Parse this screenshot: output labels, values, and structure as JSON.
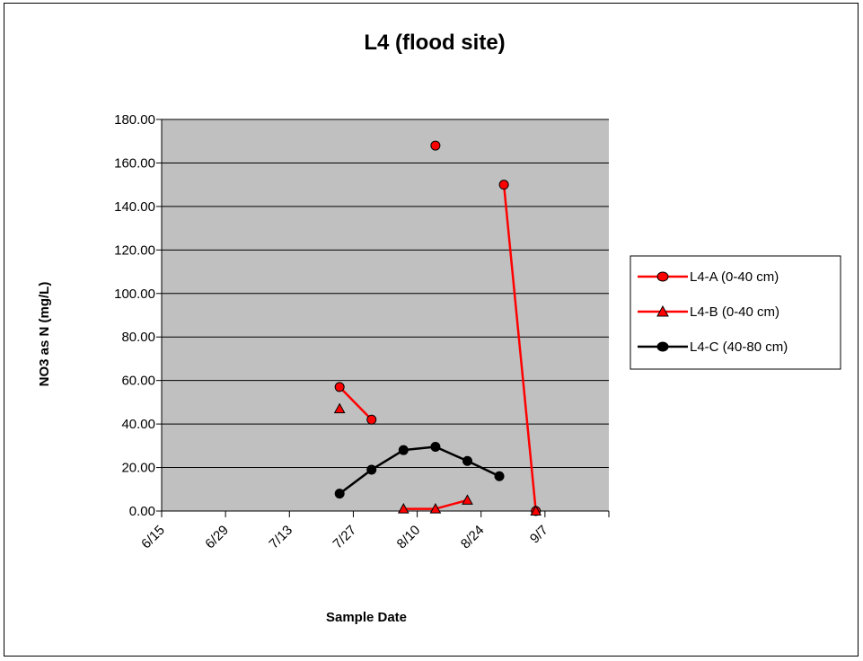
{
  "chart_data": {
    "type": "line",
    "title": "L4 (flood site)",
    "xlabel": "Sample Date",
    "ylabel": "NO3 as N (mg/L)",
    "x_tick_labels": [
      "6/15",
      "6/29",
      "7/13",
      "7/27",
      "8/10",
      "8/24",
      "9/7"
    ],
    "y_tick_labels": [
      "0.00",
      "20.00",
      "40.00",
      "60.00",
      "80.00",
      "100.00",
      "120.00",
      "140.00",
      "160.00",
      "180.00"
    ],
    "xlim": [
      "2000-06-15",
      "2000-09-21"
    ],
    "ylim": [
      0,
      180
    ],
    "grid": "horizontal",
    "legend_position": "right",
    "plot_background": "#c0c0c0",
    "series": [
      {
        "name": "L4-A (0-40 cm)",
        "color": "#ff0000",
        "marker": "circle",
        "marker_fill": "#ff0000",
        "points": [
          {
            "x": "2000-07-24",
            "y": 57
          },
          {
            "x": "2000-07-31",
            "y": 42
          },
          {
            "x": null,
            "y": null
          },
          {
            "x": "2000-08-14",
            "y": 168
          },
          {
            "x": null,
            "y": null
          },
          {
            "x": "2000-08-29",
            "y": 150
          },
          {
            "x": "2000-09-05",
            "y": 0
          }
        ]
      },
      {
        "name": "L4-B (0-40 cm)",
        "color": "#ff0000",
        "marker": "triangle",
        "marker_fill": "#ff0000",
        "points": [
          {
            "x": "2000-07-24",
            "y": 47
          },
          {
            "x": null,
            "y": null
          },
          {
            "x": "2000-08-07",
            "y": 1
          },
          {
            "x": "2000-08-14",
            "y": 1
          },
          {
            "x": "2000-08-21",
            "y": 5
          },
          {
            "x": null,
            "y": null
          },
          {
            "x": "2000-09-05",
            "y": 0
          }
        ]
      },
      {
        "name": "L4-C (40-80 cm)",
        "color": "#000000",
        "marker": "circle",
        "marker_fill": "#000000",
        "points": [
          {
            "x": "2000-07-24",
            "y": 8
          },
          {
            "x": "2000-07-31",
            "y": 19
          },
          {
            "x": "2000-08-07",
            "y": 28
          },
          {
            "x": "2000-08-14",
            "y": 29.5
          },
          {
            "x": "2000-08-21",
            "y": 23
          },
          {
            "x": "2000-08-28",
            "y": 16
          }
        ]
      }
    ]
  }
}
